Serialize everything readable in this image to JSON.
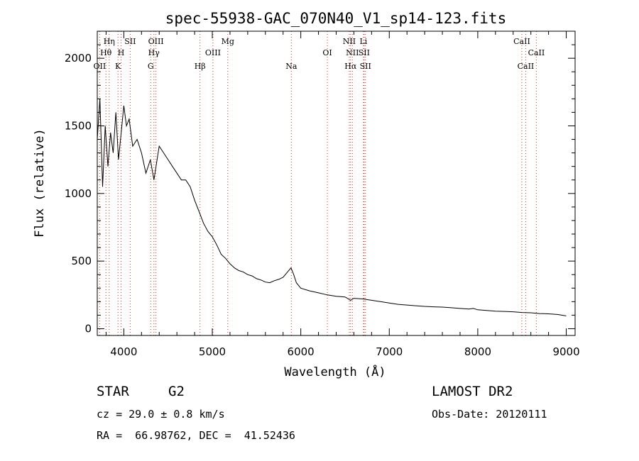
{
  "chart_data": {
    "type": "line",
    "title": "spec-55938-GAC_070N40_V1_sp14-123.fits",
    "xlabel": "Wavelength (Å)",
    "ylabel": "Flux (relative)",
    "xlim": [
      3700,
      9100
    ],
    "ylim": [
      -50,
      2200
    ],
    "xticks": [
      4000,
      5000,
      6000,
      7000,
      8000,
      9000
    ],
    "yticks": [
      0,
      500,
      1000,
      1500,
      2000
    ],
    "grid": false,
    "series": [
      {
        "color": "#000000",
        "x": [
          3700,
          3730,
          3760,
          3790,
          3820,
          3850,
          3880,
          3910,
          3940,
          3970,
          4000,
          4030,
          4060,
          4100,
          4150,
          4200,
          4250,
          4300,
          4340,
          4400,
          4450,
          4500,
          4550,
          4600,
          4650,
          4700,
          4750,
          4800,
          4860,
          4900,
          4950,
          5000,
          5050,
          5100,
          5150,
          5200,
          5250,
          5300,
          5350,
          5400,
          5450,
          5500,
          5550,
          5600,
          5650,
          5700,
          5750,
          5800,
          5850,
          5890,
          5920,
          5950,
          6000,
          6100,
          6200,
          6300,
          6400,
          6500,
          6563,
          6600,
          6700,
          6800,
          6900,
          7000,
          7100,
          7200,
          7300,
          7400,
          7500,
          7600,
          7700,
          7800,
          7900,
          7950,
          8000,
          8100,
          8200,
          8300,
          8400,
          8500,
          8600,
          8700,
          8800,
          8900,
          9000
        ],
        "y": [
          1400,
          1700,
          1050,
          1500,
          1200,
          1450,
          1300,
          1600,
          1250,
          1450,
          1650,
          1500,
          1550,
          1350,
          1400,
          1300,
          1150,
          1250,
          1100,
          1350,
          1300,
          1250,
          1200,
          1150,
          1100,
          1100,
          1050,
          950,
          850,
          780,
          720,
          680,
          620,
          550,
          520,
          480,
          450,
          430,
          420,
          400,
          390,
          370,
          360,
          345,
          340,
          355,
          365,
          380,
          420,
          450,
          400,
          340,
          300,
          280,
          265,
          250,
          240,
          235,
          210,
          225,
          220,
          210,
          200,
          190,
          180,
          175,
          170,
          165,
          162,
          160,
          155,
          150,
          145,
          150,
          140,
          135,
          130,
          128,
          125,
          120,
          118,
          112,
          110,
          105,
          95
        ]
      }
    ],
    "lines": [
      {
        "name": "OII",
        "x": 3727,
        "row": 3
      },
      {
        "name": "Hθ",
        "x": 3798,
        "row": 2
      },
      {
        "name": "Hη",
        "x": 3835,
        "row": 1
      },
      {
        "name": "K",
        "x": 3934,
        "row": 3
      },
      {
        "name": "H",
        "x": 3969,
        "row": 2
      },
      {
        "name": "SII",
        "x": 4072,
        "row": 1
      },
      {
        "name": "G",
        "x": 4304,
        "row": 3
      },
      {
        "name": "Hγ",
        "x": 4340,
        "row": 2
      },
      {
        "name": "OIII",
        "x": 4363,
        "row": 1
      },
      {
        "name": "Hβ",
        "x": 4861,
        "row": 3
      },
      {
        "name": "OIII",
        "x": 5007,
        "row": 2
      },
      {
        "name": "Mg",
        "x": 5175,
        "row": 1
      },
      {
        "name": "Na",
        "x": 5893,
        "row": 3
      },
      {
        "name": "OI",
        "x": 6300,
        "row": 2
      },
      {
        "name": "NII",
        "x": 6548,
        "row": 1
      },
      {
        "name": "NII",
        "x": 6583,
        "row": 2
      },
      {
        "name": "Hα",
        "x": 6563,
        "row": 3
      },
      {
        "name": "Li",
        "x": 6708,
        "row": 1
      },
      {
        "name": "SII",
        "x": 6716,
        "row": 2
      },
      {
        "name": "SII",
        "x": 6731,
        "row": 3
      },
      {
        "name": "CaII",
        "x": 8498,
        "row": 1
      },
      {
        "name": "CaII",
        "x": 8542,
        "row": 3
      },
      {
        "name": "CaII",
        "x": 8662,
        "row": 2
      }
    ]
  },
  "info": {
    "object_class": "STAR",
    "subclass": "G2",
    "survey": "LAMOST DR2",
    "cz": "cz = 29.0 ± 0.8 km/s",
    "obs_date": "Obs-Date: 20120111",
    "coords": "RA =  66.98762, DEC =  41.52436"
  }
}
